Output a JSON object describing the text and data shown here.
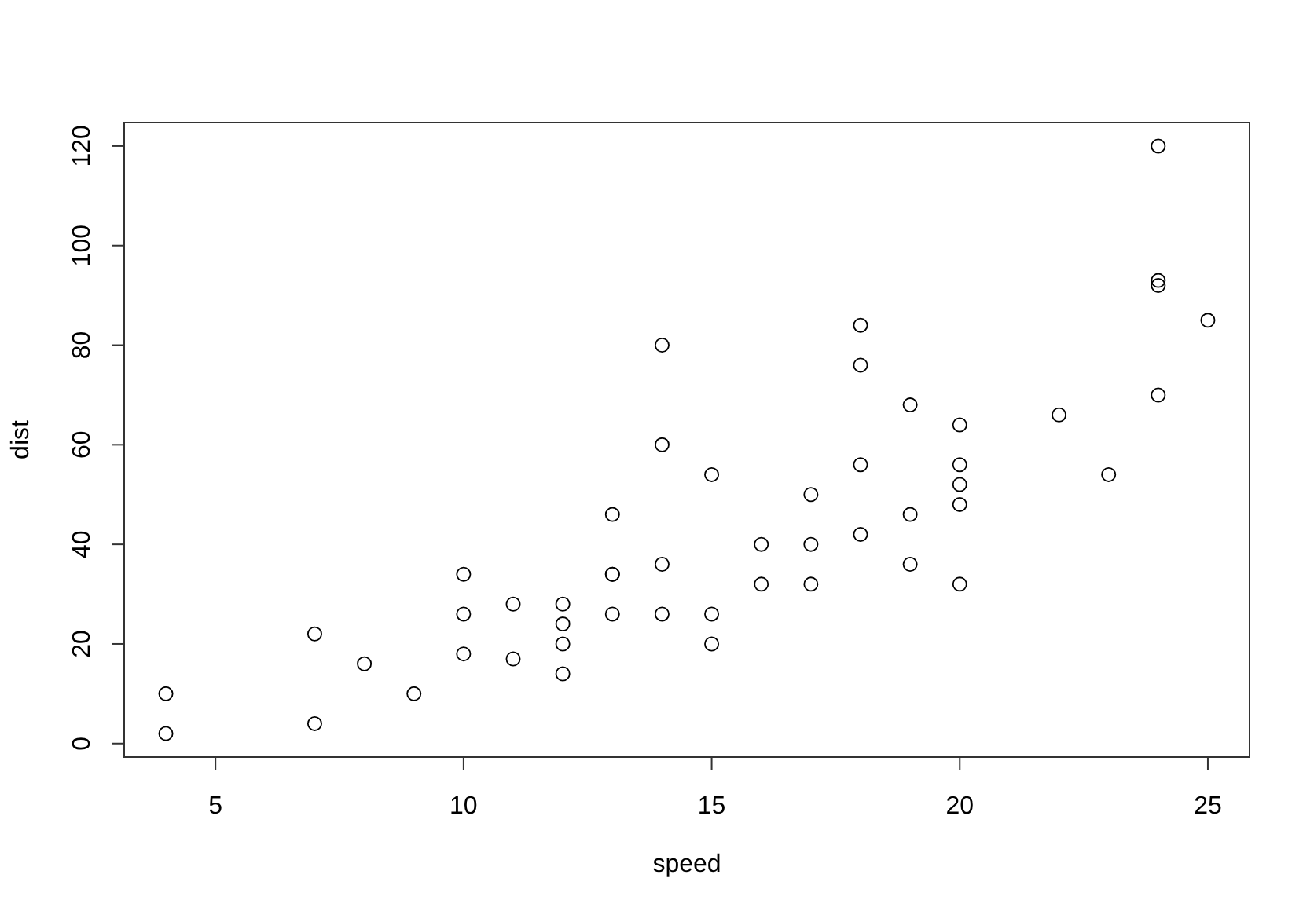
{
  "chart_data": {
    "type": "scatter",
    "xlabel": "speed",
    "ylabel": "dist",
    "x": [
      4,
      4,
      7,
      7,
      8,
      9,
      10,
      10,
      10,
      11,
      11,
      12,
      12,
      12,
      12,
      13,
      13,
      13,
      13,
      14,
      14,
      14,
      14,
      15,
      15,
      15,
      16,
      16,
      17,
      17,
      17,
      18,
      18,
      18,
      18,
      19,
      19,
      19,
      20,
      20,
      20,
      20,
      20,
      22,
      23,
      24,
      24,
      24,
      24,
      25
    ],
    "series": [
      {
        "color": "#000000",
        "values": [
          2,
          10,
          4,
          22,
          16,
          10,
          18,
          26,
          34,
          17,
          28,
          14,
          20,
          24,
          28,
          26,
          34,
          34,
          46,
          26,
          36,
          60,
          80,
          20,
          26,
          54,
          32,
          40,
          32,
          40,
          50,
          42,
          56,
          76,
          84,
          36,
          46,
          68,
          32,
          48,
          52,
          56,
          64,
          66,
          54,
          70,
          92,
          93,
          120,
          85
        ]
      }
    ],
    "xlim": [
      3.16,
      25.84
    ],
    "ylim": [
      -2.72,
      124.72
    ],
    "xticks": [
      5,
      10,
      15,
      20,
      25
    ],
    "yticks": [
      0,
      20,
      40,
      60,
      80,
      100,
      120
    ],
    "marker": "circle",
    "grid": false
  }
}
